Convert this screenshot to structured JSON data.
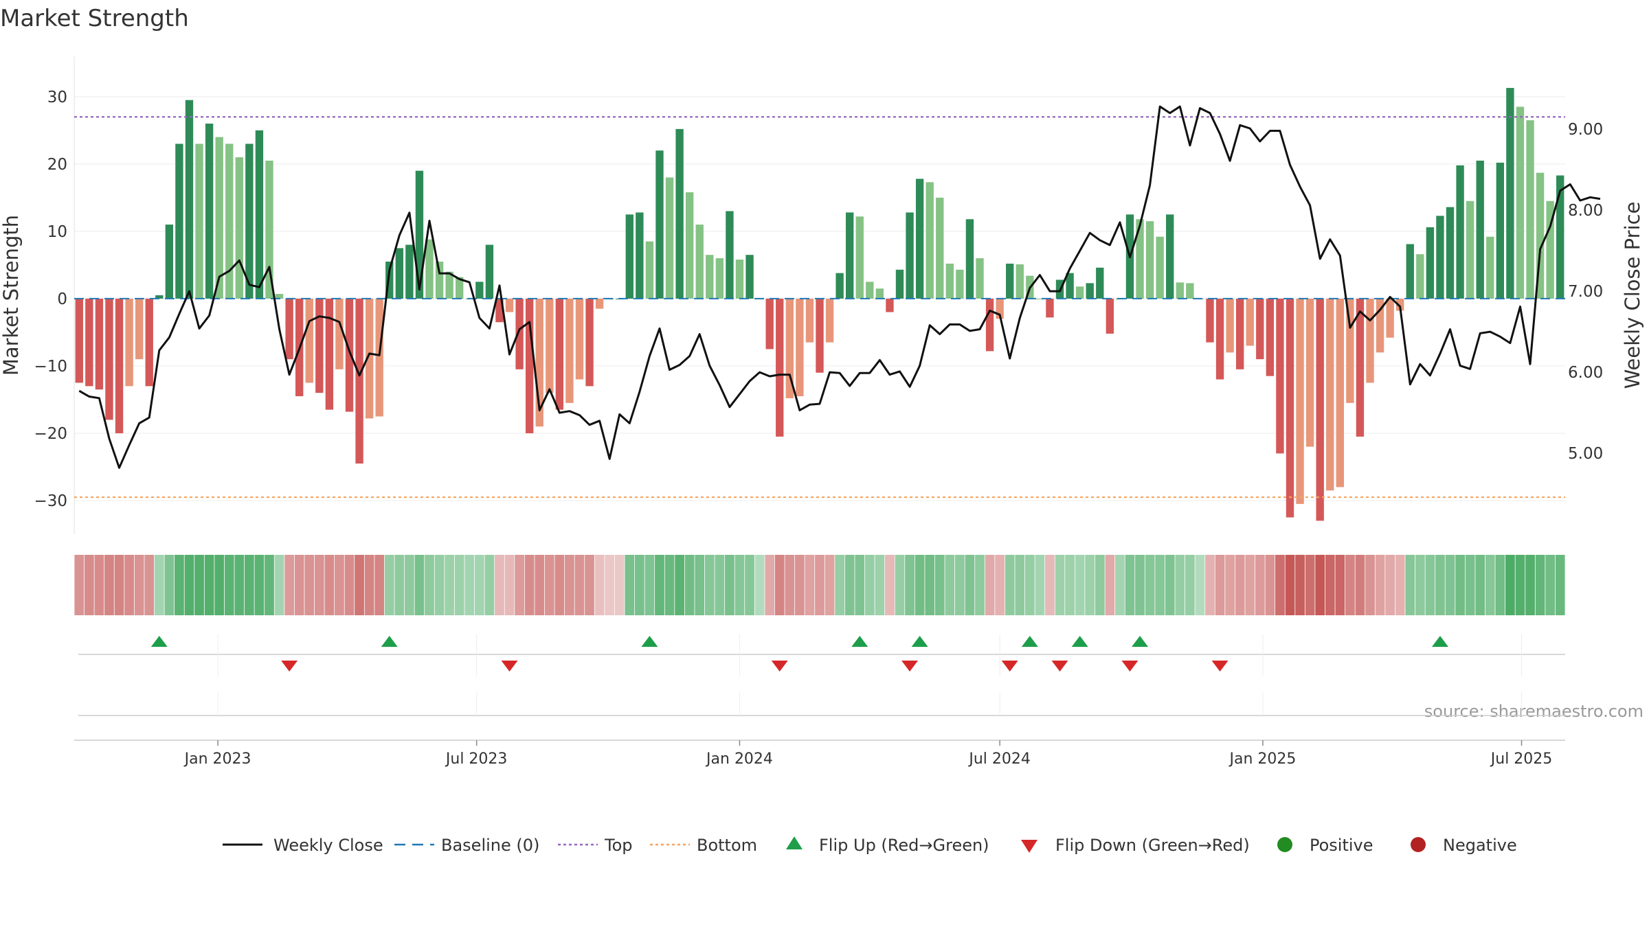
{
  "title": "Market Strength",
  "source": "source: sharemaestro.com",
  "colors": {
    "pos_dark": "#2e8b57",
    "pos_light": "#85c285",
    "neg_dark": "#d45858",
    "neg_light": "#e8967a",
    "close_line": "#111111",
    "baseline": "#1f77b4",
    "top": "#9467bd",
    "bottom": "#f4a460",
    "flip_up": "#1e9e4a",
    "flip_down": "#d62728",
    "positive": "#228b22",
    "negative": "#b22222"
  },
  "legend": [
    {
      "key": "weekly-close",
      "label": "Weekly Close",
      "kind": "line",
      "color": "#111111"
    },
    {
      "key": "baseline",
      "label": "Baseline (0)",
      "kind": "dash",
      "color": "#1f77b4"
    },
    {
      "key": "top",
      "label": "Top",
      "kind": "dot",
      "color": "#9467bd"
    },
    {
      "key": "bottom",
      "label": "Bottom",
      "kind": "dot",
      "color": "#f4a460"
    },
    {
      "key": "flip-up",
      "label": "Flip Up (Red→Green)",
      "kind": "tri-up",
      "color": "#1e9e4a"
    },
    {
      "key": "flip-down",
      "label": "Flip Down (Green→Red)",
      "kind": "tri-down",
      "color": "#d62728"
    },
    {
      "key": "positive",
      "label": "Positive",
      "kind": "circle",
      "color": "#228b22"
    },
    {
      "key": "negative",
      "label": "Negative",
      "kind": "circle",
      "color": "#b22222"
    }
  ],
  "chart_data": {
    "type": "bar",
    "title": "Market Strength",
    "x_start": "2022-09-26",
    "x_step_days": 7,
    "x_ticks": [
      "Jan 2023",
      "Jul 2023",
      "Jan 2024",
      "Jul 2024",
      "Jan 2025",
      "Jul 2025"
    ],
    "y_left": {
      "label": "Market Strength",
      "lim": [
        -35,
        36
      ],
      "ticks": [
        -30,
        -20,
        -10,
        0,
        10,
        20,
        30
      ],
      "tick_labels": [
        "−30",
        "−20",
        "−10",
        "0",
        "10",
        "20",
        "30"
      ]
    },
    "y_right": {
      "label": "Weekly Close Price",
      "lim": [
        4.0,
        9.9
      ],
      "ticks": [
        5.0,
        6.0,
        7.0,
        8.0,
        9.0
      ],
      "tick_labels": [
        "5.00",
        "6.00",
        "7.00",
        "8.00",
        "9.00"
      ]
    },
    "top_level": 27,
    "bottom_level": -29.5,
    "strength": [
      -12.5,
      -13,
      -13.5,
      -18,
      -20,
      -13,
      -9,
      -13,
      0.5,
      11,
      23,
      29.5,
      23,
      26,
      24,
      23,
      21,
      23,
      25,
      20.5,
      0.7,
      -9,
      -14.5,
      -12.5,
      -14,
      -16.5,
      -10.5,
      -16.8,
      -24.5,
      -17.8,
      -17.5,
      5.5,
      7.5,
      8,
      19,
      8.8,
      5.5,
      4,
      3.2,
      0,
      2.5,
      8,
      -3.5,
      -2,
      -10.5,
      -20,
      -19,
      -14,
      -16.5,
      -15.5,
      -12,
      -13,
      -1.5,
      0,
      0,
      12.5,
      12.8,
      8.5,
      22,
      18,
      25.2,
      15.8,
      11,
      6.5,
      6,
      13,
      5.8,
      6.5,
      0,
      -7.5,
      -20.5,
      -14.8,
      -14.5,
      -6.5,
      -11,
      -6.5,
      3.8,
      12.8,
      12.2,
      2.5,
      1.5,
      -2,
      4.3,
      12.8,
      17.8,
      17.3,
      15,
      5.2,
      4.3,
      11.8,
      6,
      -7.8,
      -3,
      5.2,
      5.1,
      3.4,
      0,
      -2.8,
      2.8,
      3.8,
      1.8,
      2.3,
      4.6,
      -5.2,
      0,
      12.5,
      11.8,
      11.5,
      9.2,
      12.5,
      2.4,
      2.3,
      0,
      -6.5,
      -12,
      -8,
      -10.5,
      -7,
      -9,
      -11.5,
      -23,
      -32.5,
      -30.5,
      -22,
      -33,
      -28.5,
      -28,
      -15.5,
      -20.5,
      -12.5,
      -8,
      -5.8,
      -1.8,
      8.1,
      6.6,
      10.6,
      12.3,
      13.6,
      19.8,
      14.5,
      20.5,
      9.2,
      20.2,
      31.3,
      28.5,
      26.5,
      18.7,
      14.5,
      18.3
    ],
    "weekly_close": [
      5.77,
      5.7,
      5.68,
      5.18,
      4.82,
      5.1,
      5.37,
      5.44,
      6.27,
      6.43,
      6.72,
      7.0,
      6.54,
      6.7,
      7.18,
      7.25,
      7.38,
      7.08,
      7.05,
      7.3,
      6.53,
      5.97,
      6.29,
      6.63,
      6.69,
      6.67,
      6.62,
      6.26,
      5.96,
      6.23,
      6.21,
      7.26,
      7.69,
      7.97,
      7.02,
      7.87,
      7.22,
      7.22,
      7.15,
      7.11,
      6.67,
      6.54,
      7.07,
      6.22,
      6.53,
      6.62,
      5.53,
      5.79,
      5.5,
      5.52,
      5.47,
      5.35,
      5.4,
      4.93,
      5.48,
      5.37,
      5.76,
      6.2,
      6.54,
      6.03,
      6.09,
      6.2,
      6.47,
      6.08,
      5.84,
      5.57,
      5.73,
      5.89,
      6.0,
      5.95,
      5.97,
      5.97,
      5.53,
      5.6,
      5.61,
      6.0,
      5.99,
      5.83,
      5.99,
      5.99,
      6.15,
      5.97,
      6.01,
      5.82,
      6.08,
      6.58,
      6.47,
      6.59,
      6.59,
      6.51,
      6.53,
      6.76,
      6.71,
      6.17,
      6.67,
      7.04,
      7.2,
      7.0,
      7.0,
      7.28,
      7.5,
      7.72,
      7.63,
      7.57,
      7.85,
      7.42,
      7.81,
      8.31,
      9.28,
      9.2,
      9.28,
      8.8,
      9.26,
      9.2,
      8.94,
      8.61,
      9.05,
      9.01,
      8.85,
      8.98,
      8.98,
      8.56,
      8.29,
      8.06,
      7.4,
      7.64,
      7.44,
      6.55,
      6.75,
      6.64,
      6.77,
      6.93,
      6.81,
      5.85,
      6.1,
      5.96,
      6.23,
      6.53,
      6.08,
      6.04,
      6.48,
      6.5,
      6.44,
      6.36,
      6.81,
      6.1,
      7.52,
      7.8,
      8.24,
      8.32,
      8.12,
      8.16,
      8.14
    ],
    "regime_score": [
      -0.55,
      -0.6,
      -0.6,
      -0.65,
      -0.65,
      -0.6,
      -0.55,
      -0.55,
      0.3,
      0.55,
      0.8,
      0.85,
      0.85,
      0.85,
      0.85,
      0.8,
      0.8,
      0.8,
      0.8,
      0.75,
      0.3,
      -0.5,
      -0.55,
      -0.55,
      -0.55,
      -0.6,
      -0.55,
      -0.6,
      -0.75,
      -0.65,
      -0.65,
      0.4,
      0.45,
      0.45,
      0.6,
      0.45,
      0.4,
      0.35,
      0.35,
      0.3,
      0.3,
      0.4,
      -0.3,
      -0.3,
      -0.5,
      -0.6,
      -0.6,
      -0.55,
      -0.6,
      -0.55,
      -0.55,
      -0.55,
      -0.25,
      -0.2,
      -0.2,
      0.6,
      0.6,
      0.55,
      0.75,
      0.7,
      0.8,
      0.65,
      0.6,
      0.5,
      0.5,
      0.6,
      0.5,
      0.5,
      0.2,
      -0.4,
      -0.65,
      -0.55,
      -0.55,
      -0.45,
      -0.5,
      -0.45,
      0.4,
      0.55,
      0.55,
      0.4,
      0.35,
      -0.3,
      0.4,
      0.55,
      0.65,
      0.65,
      0.6,
      0.45,
      0.45,
      0.55,
      0.45,
      -0.4,
      -0.35,
      0.45,
      0.45,
      0.4,
      0.3,
      -0.3,
      0.35,
      0.35,
      0.3,
      0.35,
      0.45,
      -0.4,
      0.3,
      0.55,
      0.55,
      0.5,
      0.5,
      0.55,
      0.4,
      0.4,
      0.2,
      -0.35,
      -0.5,
      -0.45,
      -0.5,
      -0.45,
      -0.5,
      -0.55,
      -0.8,
      -0.95,
      -0.9,
      -0.8,
      -0.95,
      -0.85,
      -0.85,
      -0.65,
      -0.7,
      -0.55,
      -0.45,
      -0.4,
      -0.35,
      0.5,
      0.45,
      0.5,
      0.55,
      0.55,
      0.65,
      0.6,
      0.65,
      0.5,
      0.65,
      0.9,
      0.85,
      0.85,
      0.75,
      0.65,
      0.7
    ],
    "flip_up_weeks": [
      8,
      31,
      57,
      78,
      84,
      95,
      100,
      106,
      136
    ],
    "flip_down_weeks": [
      21,
      43,
      70,
      83,
      93,
      98,
      105,
      114
    ]
  }
}
